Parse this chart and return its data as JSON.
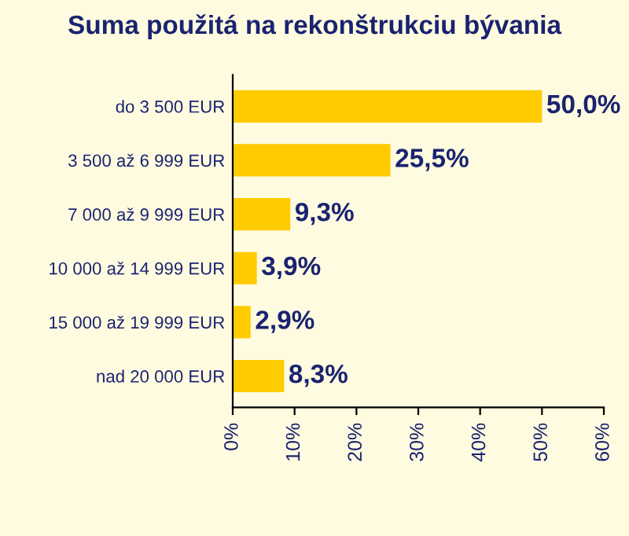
{
  "chart_data": {
    "type": "bar",
    "orientation": "horizontal",
    "title": "Suma použitá na rekonštrukciu bývania",
    "categories": [
      "do 3 500 EUR",
      "3 500 až 6 999 EUR",
      "7 000 až 9 999 EUR",
      "10 000 až 14 999 EUR",
      "15 000 až 19 999 EUR",
      "nad 20 000 EUR"
    ],
    "values": [
      50.0,
      25.5,
      9.3,
      3.9,
      2.9,
      8.3
    ],
    "value_labels": [
      "50,0%",
      "25,5%",
      "9,3%",
      "3,9%",
      "2,9%",
      "8,3%"
    ],
    "color": "#ffcc00",
    "xlim": [
      0,
      60
    ],
    "xticks": [
      {
        "value": 0,
        "label": "0%"
      },
      {
        "value": 10,
        "label": "10%"
      },
      {
        "value": 20,
        "label": "20%"
      },
      {
        "value": 30,
        "label": "30%"
      },
      {
        "value": 40,
        "label": "40%"
      },
      {
        "value": 50,
        "label": "50%"
      },
      {
        "value": 60,
        "label": "60%"
      }
    ],
    "grid": false,
    "legend": false
  }
}
